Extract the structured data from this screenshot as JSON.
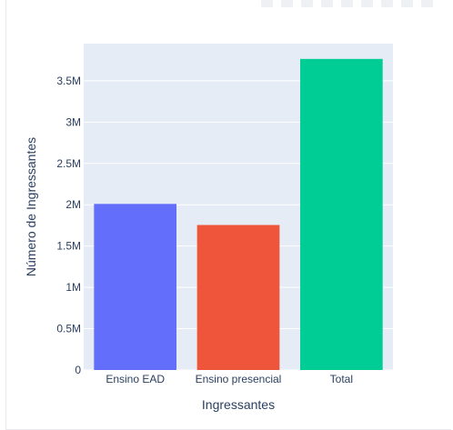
{
  "chart_data": {
    "type": "bar",
    "categories": [
      "Ensino EAD",
      "Ensino presencial",
      "Total"
    ],
    "values": [
      2010000,
      1755000,
      3765000
    ],
    "colors": [
      "#636efa",
      "#ef553b",
      "#00cc96"
    ],
    "xlabel": "Ingressantes",
    "ylabel": "Número de Ingressantes",
    "ylim": [
      0,
      3950000
    ],
    "yticks": [
      0,
      500000,
      1000000,
      1500000,
      2000000,
      2500000,
      3000000,
      3500000
    ],
    "ytick_labels": [
      "0",
      "0.5M",
      "1M",
      "1.5M",
      "2M",
      "2.5M",
      "3M",
      "3.5M"
    ],
    "plot_bg": "#e5ecf6",
    "grid": true
  },
  "modebar": {
    "icons": [
      "camera-icon",
      "zoom-icon",
      "pan-icon",
      "box-select-icon",
      "lasso-icon",
      "zoom-in-icon",
      "zoom-out-icon",
      "autoscale-icon",
      "home-icon"
    ]
  }
}
